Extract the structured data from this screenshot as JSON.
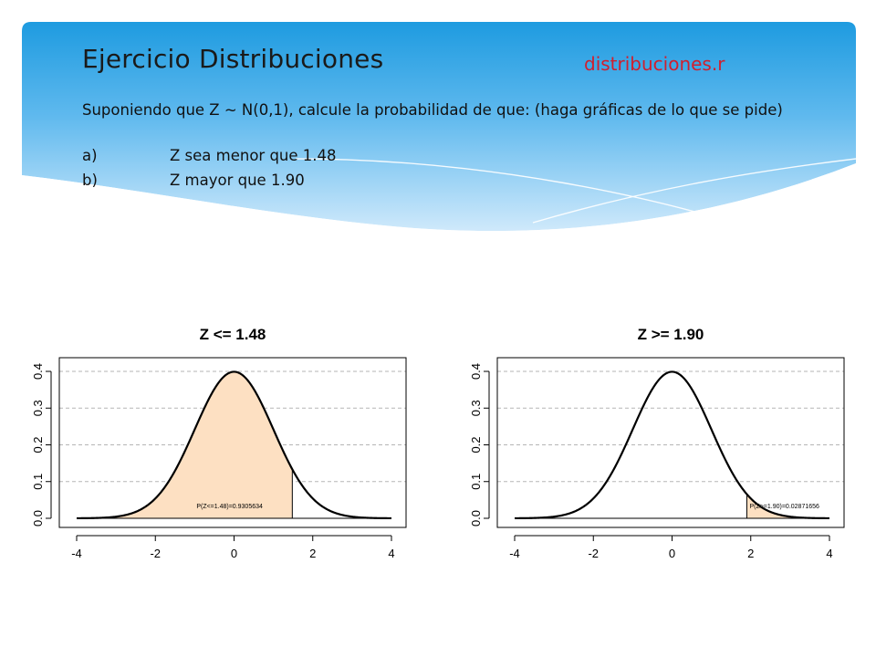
{
  "slide": {
    "title": "Ejercicio Distribuciones",
    "file_label": "distribuciones.r",
    "instruction": "Suponiendo que Z ~ N(0,1), calcule la probabilidad de que: (haga gráficas de lo que se pide)",
    "items": [
      {
        "letter": "a)",
        "text": "Z sea menor que 1.48"
      },
      {
        "letter": "b)",
        "text": "Z mayor que 1.90"
      }
    ]
  },
  "colors": {
    "band_dark": "#1e9be0",
    "band_light": "#cfe9fb",
    "shade_fill": "#fde0c2",
    "title_red": "#d01f2e"
  },
  "chart_data": [
    {
      "type": "area",
      "title": "Z <= 1.48",
      "distribution": "normal(0,1)",
      "shade": {
        "from": -4,
        "to": 1.48
      },
      "annotation": "P(Z<=1.48)=0.9305634",
      "annotation_x": 1.48,
      "xlim": [
        -4,
        4
      ],
      "ylim": [
        0,
        0.4
      ],
      "xticks": [
        "-4",
        "-2",
        "0",
        "2",
        "4"
      ],
      "yticks": [
        "0.0",
        "0.1",
        "0.2",
        "0.3",
        "0.4"
      ],
      "grid": "horizontal-dashed"
    },
    {
      "type": "area",
      "title": "Z >= 1.90",
      "distribution": "normal(0,1)",
      "shade": {
        "from": 1.9,
        "to": 4
      },
      "annotation": "P(Z>=1.90)=0.02871656",
      "annotation_x": 1.9,
      "xlim": [
        -4,
        4
      ],
      "ylim": [
        0,
        0.4
      ],
      "xticks": [
        "-4",
        "-2",
        "0",
        "2",
        "4"
      ],
      "yticks": [
        "0.0",
        "0.1",
        "0.2",
        "0.3",
        "0.4"
      ],
      "grid": "horizontal-dashed"
    }
  ]
}
